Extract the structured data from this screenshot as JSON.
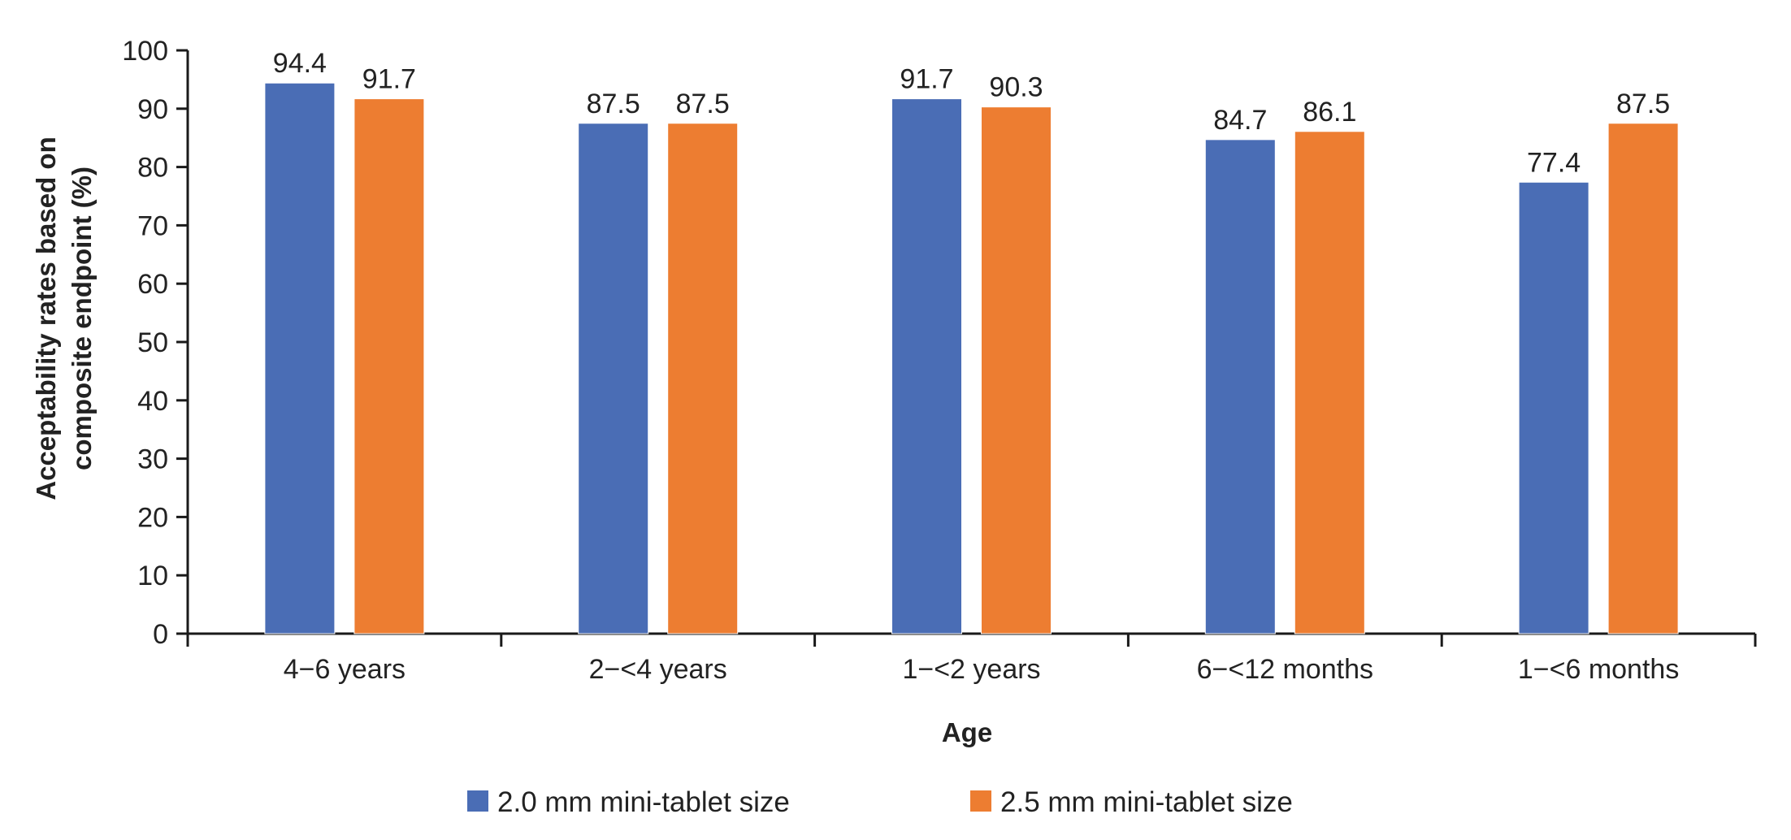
{
  "chart_data": {
    "type": "bar",
    "title": "",
    "categories": [
      "4−6 years",
      "2−<4 years",
      "1−<2 years",
      "6−<12 months",
      "1−<6 months"
    ],
    "series": [
      {
        "name": "2.0 mm mini-tablet size",
        "color": "#4a6db5",
        "values": [
          94.4,
          87.5,
          91.7,
          84.7,
          77.4
        ],
        "value_labels": [
          "94.4",
          "87.5",
          "91.7",
          "84.7",
          "77.4"
        ]
      },
      {
        "name": "2.5 mm mini-tablet size",
        "color": "#ed7d31",
        "values": [
          91.7,
          87.5,
          90.3,
          86.1,
          87.5
        ],
        "value_labels": [
          "91.7",
          "87.5",
          "90.3",
          "86.1",
          "87.5"
        ]
      }
    ],
    "xlabel": "Age",
    "ylabel_lines": [
      "Acceptability rates based on",
      "composite endpoint (%)"
    ],
    "ylim": [
      0,
      100
    ],
    "yticks": [
      "0",
      "10",
      "20",
      "30",
      "40",
      "50",
      "60",
      "70",
      "80",
      "90",
      "100"
    ],
    "grid": false,
    "legend_position": "bottom"
  }
}
